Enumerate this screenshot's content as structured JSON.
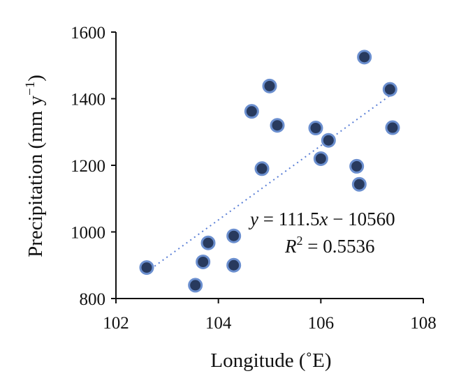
{
  "chart_data": {
    "type": "scatter",
    "title": "",
    "xlabel": "Longitude (˚E)",
    "ylabel": "Precipitation (mm y",
    "ylabel_sup": "−1",
    "ylabel_end": ")",
    "xlim": [
      102,
      108
    ],
    "ylim": [
      800,
      1600
    ],
    "xticks": [
      "102",
      "104",
      "106",
      "108"
    ],
    "yticks": [
      "800",
      "1000",
      "1200",
      "1400",
      "1600"
    ],
    "points": [
      {
        "x": 102.6,
        "y": 893
      },
      {
        "x": 103.55,
        "y": 840
      },
      {
        "x": 103.7,
        "y": 910
      },
      {
        "x": 103.8,
        "y": 967
      },
      {
        "x": 104.3,
        "y": 900
      },
      {
        "x": 104.3,
        "y": 988
      },
      {
        "x": 104.65,
        "y": 1362
      },
      {
        "x": 104.85,
        "y": 1190
      },
      {
        "x": 105.0,
        "y": 1438
      },
      {
        "x": 105.15,
        "y": 1320
      },
      {
        "x": 105.9,
        "y": 1312
      },
      {
        "x": 106.0,
        "y": 1220
      },
      {
        "x": 106.15,
        "y": 1275
      },
      {
        "x": 106.7,
        "y": 1197
      },
      {
        "x": 106.75,
        "y": 1143
      },
      {
        "x": 106.85,
        "y": 1525
      },
      {
        "x": 107.35,
        "y": 1428
      },
      {
        "x": 107.4,
        "y": 1313
      }
    ],
    "trendline": {
      "slope": 111.5,
      "intercept": -10560,
      "x_range": [
        102.6,
        107.4
      ]
    },
    "equation": {
      "y": "y",
      "rest": " = 111.5",
      "x": "x",
      "tail": " − 10560",
      "r": "R",
      "r_sup": "2",
      "r_rest": " = 0.5536"
    },
    "grid": false,
    "legend": "none"
  },
  "colors": {
    "marker_fill": "#283a5e",
    "marker_edge": "#6b8fcf",
    "trendline": "#5a7fd6",
    "axis": "#111111"
  }
}
